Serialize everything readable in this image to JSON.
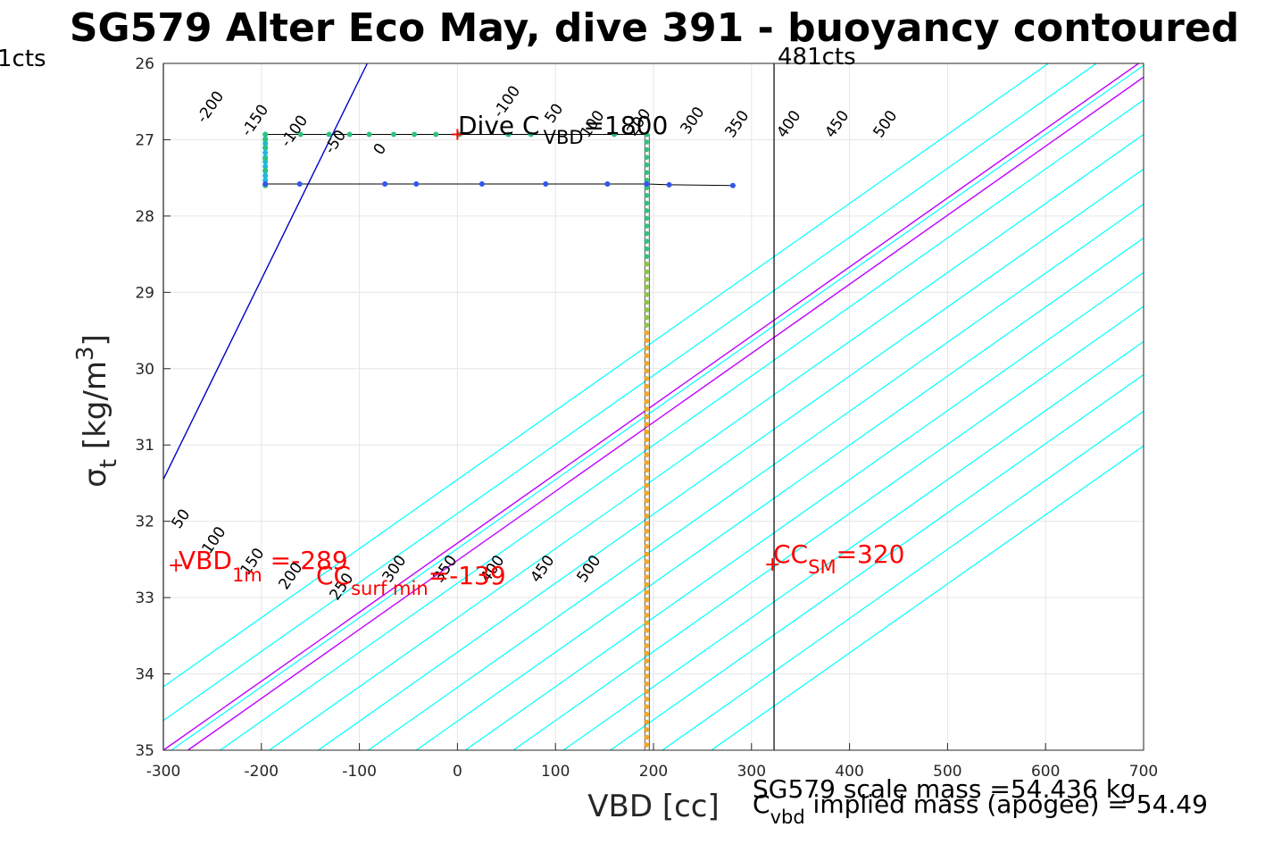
{
  "chart_data": {
    "type": "line",
    "title": "SG579 Alter Eco May, dive 391 - buoyancy contoured",
    "xlabel": "VBD [cc]",
    "ylabel": "σ_t [kg/m^3]",
    "xlim": [
      -300,
      700
    ],
    "ylim": [
      26,
      35
    ],
    "y_reversed": true,
    "grid": true,
    "x_ticks": [
      "-300",
      "-200",
      "-100",
      "0",
      "100",
      "200",
      "300",
      "400",
      "500",
      "600",
      "700"
    ],
    "y_ticks": [
      "26",
      "27",
      "28",
      "29",
      "30",
      "31",
      "32",
      "33",
      "34",
      "35"
    ],
    "contours": {
      "slope_cc_per_sigma": 40.2,
      "levels_cyan": [
        -200,
        -150,
        -100,
        -50,
        50,
        100,
        150,
        200,
        250,
        300,
        350,
        400,
        450,
        500
      ],
      "levels_magenta": [
        -100,
        0
      ],
      "level_blue": -150,
      "upper_labels": [
        "-200",
        "-150",
        "-100",
        "-50",
        "0",
        "-100",
        "50",
        "100",
        "200",
        "300",
        "350",
        "400",
        "450",
        "500"
      ],
      "lower_labels": [
        "50",
        "100",
        "150",
        "200",
        "250",
        "300",
        "350",
        "400",
        "450",
        "500"
      ]
    },
    "vbd_lines": [
      {
        "label": "1cts",
        "x": -300
      },
      {
        "label": "481cts",
        "x": 323
      }
    ],
    "series": [
      {
        "name": "upper",
        "x": [
          -196,
          -196,
          -196,
          -196,
          -196,
          -196,
          -160,
          -131,
          -110,
          -90,
          -65,
          -44,
          -22,
          2,
          52,
          75,
          160,
          193
        ],
        "y": [
          27.6,
          27.4,
          27.25,
          27.1,
          27.0,
          26.93,
          26.93,
          26.93,
          26.93,
          26.93,
          26.93,
          26.93,
          26.93,
          26.93,
          26.93,
          26.93,
          26.93,
          26.93
        ]
      },
      {
        "name": "lower",
        "x": [
          -196,
          -161,
          -74,
          -42,
          25,
          90,
          153,
          193,
          216,
          281
        ],
        "y": [
          27.58,
          27.58,
          27.58,
          27.58,
          27.58,
          27.58,
          27.58,
          27.58,
          27.59,
          27.6
        ]
      },
      {
        "name": "vertical",
        "x": [
          193,
          193
        ],
        "y": [
          26.93,
          35
        ]
      }
    ],
    "annotations": {
      "dive_c_vbd": {
        "text_a": "Dive C",
        "sub": "VBD",
        "text_b": "=1800",
        "x": 0,
        "y": 26.93
      },
      "vbd_1m": {
        "text_a": "VBD",
        "sub": "1m",
        "text_b": " =-289",
        "x": -289,
        "y": 32.56
      },
      "cc_surf_min": {
        "text_a": "CC",
        "sub": "surf min",
        "text_b": "=-139"
      },
      "cc_sm": {
        "text_a": "CC",
        "sub": "SM",
        "text_b": "=320",
        "x": 320,
        "y": 32.56
      }
    },
    "footer": {
      "scale_mass": "SG579 scale mass =54.436 kg",
      "implied_c": "C",
      "implied_sub": "vbd",
      "implied_rest": " implied mass (apogee) = 54.49"
    },
    "colors": {
      "cyan": "#00ffff",
      "magenta": "#bf00ff",
      "blue": "#0000cc",
      "red": "#ff0000",
      "upper_points": "#2ec27e",
      "lower_points": "#3355ee",
      "vertical_points": "#f5a623",
      "grid": "#e6e6e6"
    }
  }
}
